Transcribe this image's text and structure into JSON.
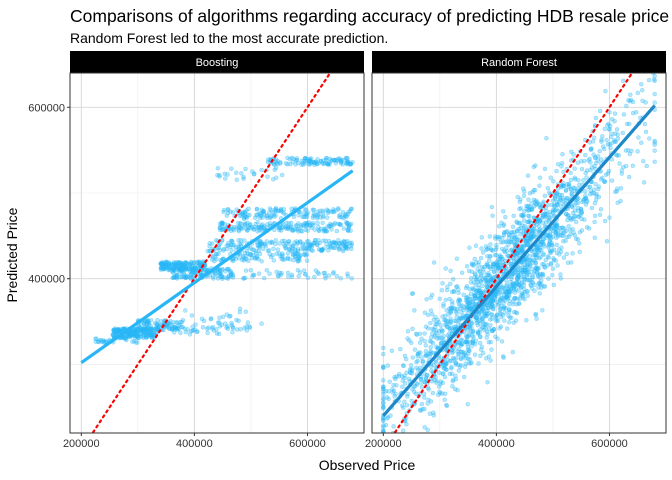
{
  "chart_data": {
    "type": "scatter",
    "title": "Comparisons of algorithms regarding accuracy of predicting HDB resale price",
    "subtitle": "Random Forest led to the most accurate prediction.",
    "xlabel": "Observed Price",
    "ylabel": "Predicted Price",
    "xlim": [
      180000,
      700000
    ],
    "ylim": [
      220000,
      640000
    ],
    "x_ticks": [
      200000,
      400000,
      600000
    ],
    "y_ticks": [
      400000,
      600000
    ],
    "grid": true,
    "reference_line": {
      "type": "identity",
      "slope": 1,
      "intercept": 0,
      "color": "#ff0000",
      "style": "dotted"
    },
    "colors": {
      "points": "#29b6f6",
      "fit_line_boosting": "#29b6f6",
      "fit_line_rf": "#1e88c8",
      "strip_bg": "#000000"
    },
    "panels": [
      {
        "name": "Boosting",
        "fit_line": {
          "x": [
            200000,
            680000
          ],
          "y": [
            302000,
            526000
          ]
        },
        "clusters": [
          {
            "x": [
              255000,
              330000
            ],
            "y": [
              330000,
              342000
            ],
            "n": 220
          },
          {
            "x": [
              300000,
              380000
            ],
            "y": [
              340000,
              352000
            ],
            "n": 90
          },
          {
            "x": [
              340000,
              420000
            ],
            "y": [
              410000,
              420000
            ],
            "n": 180
          },
          {
            "x": [
              360000,
              470000
            ],
            "y": [
              400000,
              412000
            ],
            "n": 120
          },
          {
            "x": [
              420000,
              680000
            ],
            "y": [
              432000,
              445000
            ],
            "n": 200
          },
          {
            "x": [
              440000,
              680000
            ],
            "y": [
              455000,
              466000
            ],
            "n": 180
          },
          {
            "x": [
              450000,
              680000
            ],
            "y": [
              470000,
              482000
            ],
            "n": 140
          },
          {
            "x": [
              430000,
              600000
            ],
            "y": [
              420000,
              430000
            ],
            "n": 90
          },
          {
            "x": [
              530000,
              680000
            ],
            "y": [
              533000,
              541000
            ],
            "n": 110
          },
          {
            "x": [
              440000,
              560000
            ],
            "y": [
              515000,
              530000
            ],
            "n": 25
          },
          {
            "x": [
              220000,
              300000
            ],
            "y": [
              325000,
              330000
            ],
            "n": 25
          },
          {
            "x": [
              330000,
              500000
            ],
            "y": [
              335000,
              345000
            ],
            "n": 50
          },
          {
            "x": [
              380000,
              520000
            ],
            "y": [
              345000,
              365000
            ],
            "n": 25
          },
          {
            "x": [
              480000,
              680000
            ],
            "y": [
              400000,
              410000
            ],
            "n": 45
          }
        ]
      },
      {
        "name": "Random Forest",
        "fit_line": {
          "x": [
            200000,
            680000
          ],
          "y": [
            240000,
            602000
          ]
        },
        "cloud": {
          "x": [
            200000,
            680000
          ],
          "n": 2000,
          "slope": 0.75,
          "intercept": 90000,
          "spread": 32000
        }
      }
    ]
  }
}
